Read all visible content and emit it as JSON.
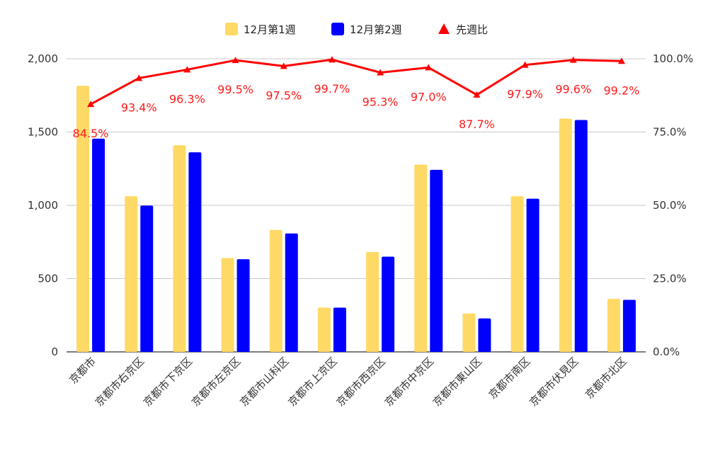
{
  "chart_data": {
    "type": "bar",
    "categories": [
      "京都市",
      "京都市右京区",
      "京都市下京区",
      "京都市左京区",
      "京都市山科区",
      "京都市上京区",
      "京都市西京区",
      "京都市中京区",
      "京都市東山区",
      "京都市南区",
      "京都市伏見区",
      "京都市北区"
    ],
    "series": [
      {
        "name": "12月第1週",
        "type": "bar",
        "axis": "left",
        "color": "#FFD966",
        "values": [
          1815,
          1062,
          1410,
          640,
          832,
          302,
          682,
          1278,
          262,
          1062,
          1592,
          362
        ]
      },
      {
        "name": "12月第2週",
        "type": "bar",
        "axis": "left",
        "color": "#0000FF",
        "values": [
          1455,
          998,
          1362,
          632,
          808,
          302,
          650,
          1242,
          228,
          1045,
          1582,
          355
        ]
      },
      {
        "name": "先週比",
        "type": "line",
        "axis": "right",
        "color": "#FF0000",
        "marker": "triangle",
        "values": [
          84.5,
          93.4,
          96.3,
          99.5,
          97.5,
          99.7,
          95.3,
          97.0,
          87.7,
          97.9,
          99.6,
          99.2
        ],
        "labels": [
          "84.5%",
          "93.4%",
          "96.3%",
          "99.5%",
          "97.5%",
          "99.7%",
          "95.3%",
          "97.0%",
          "87.7%",
          "97.9%",
          "99.6%",
          "99.2%"
        ]
      }
    ],
    "y_left": {
      "range": [
        0,
        2000
      ],
      "ticks": [
        0,
        500,
        1000,
        1500,
        2000
      ],
      "tick_labels": [
        "0",
        "500",
        "1,000",
        "1,500",
        "2,000"
      ]
    },
    "y_right": {
      "range": [
        0,
        100
      ],
      "ticks": [
        0,
        25,
        50,
        75,
        100
      ],
      "tick_labels": [
        "0.0%",
        "25.0%",
        "50.0%",
        "75.0%",
        "100.0%"
      ]
    },
    "grid": true,
    "legend_position": "top",
    "title": "",
    "xlabel": "",
    "ylabel": ""
  }
}
